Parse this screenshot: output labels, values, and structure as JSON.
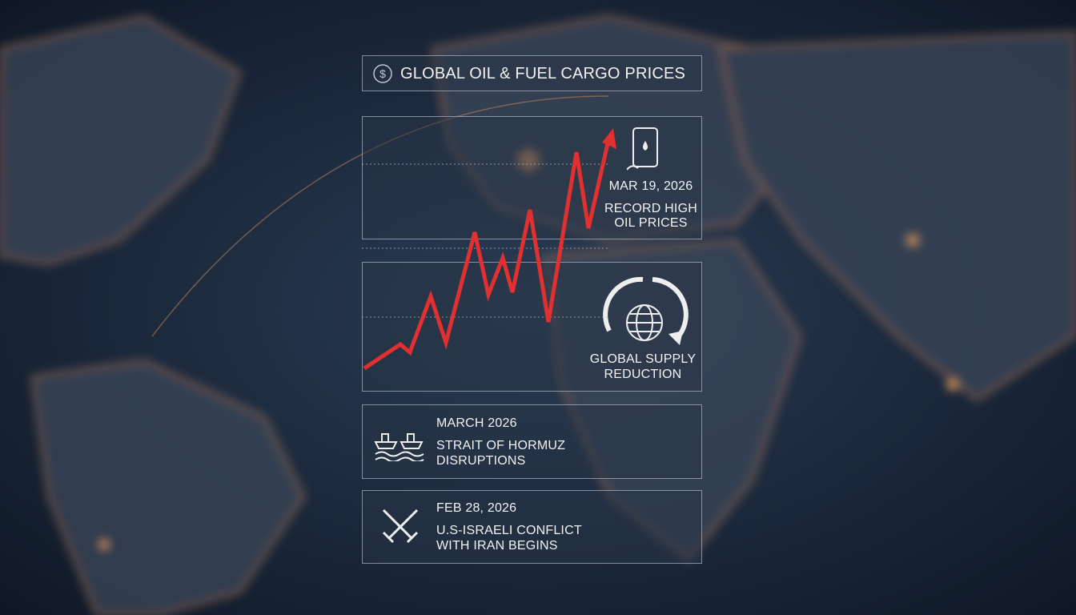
{
  "header": {
    "title": "GLOBAL OIL & FUEL CARGO PRICES"
  },
  "events": [
    {
      "date": "MAR 19, 2026",
      "label": [
        "RECORD HIGH",
        "OIL PRICES"
      ]
    },
    {
      "label": [
        "GLOBAL SUPPLY",
        "REDUCTION"
      ]
    },
    {
      "date": "MARCH 2026",
      "label": [
        "STRAIT OF HORMUZ",
        "DISRUPTIONS"
      ]
    },
    {
      "date": "FEB 28, 2026",
      "label": [
        "U.S-ISRAELI CONFLICT",
        "WITH IRAN BEGINS"
      ]
    }
  ]
}
